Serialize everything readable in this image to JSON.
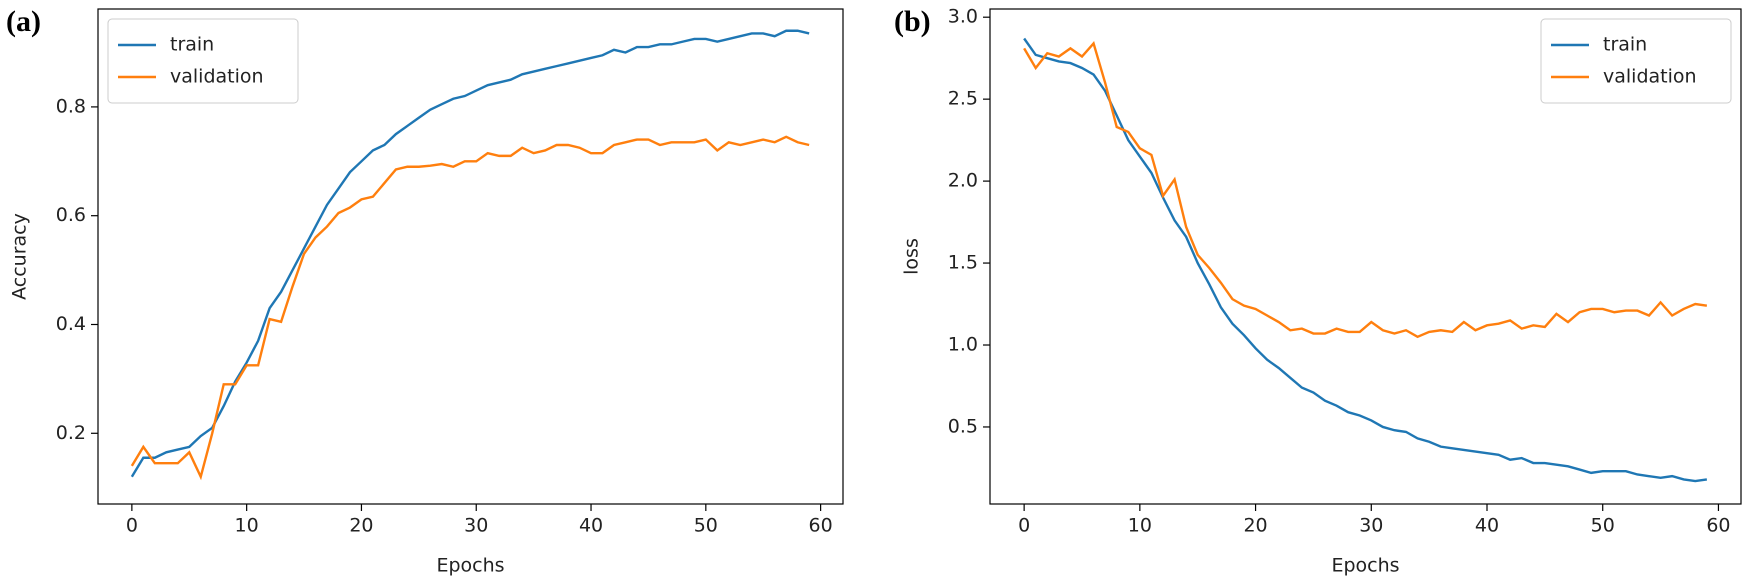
{
  "chart_data": [
    {
      "type": "line",
      "label": "(a)",
      "xlabel": "Epochs",
      "ylabel": "Accuracy",
      "x": [
        0,
        1,
        2,
        3,
        4,
        5,
        6,
        7,
        8,
        9,
        10,
        11,
        12,
        13,
        14,
        15,
        16,
        17,
        18,
        19,
        20,
        21,
        22,
        23,
        24,
        25,
        26,
        27,
        28,
        29,
        30,
        31,
        32,
        33,
        34,
        35,
        36,
        37,
        38,
        39,
        40,
        41,
        42,
        43,
        44,
        45,
        46,
        47,
        48,
        49,
        50,
        51,
        52,
        53,
        54,
        55,
        56,
        57,
        58,
        59
      ],
      "series": [
        {
          "name": "train",
          "color": "#1f77b4",
          "values": [
            0.12,
            0.155,
            0.155,
            0.165,
            0.17,
            0.175,
            0.195,
            0.21,
            0.25,
            0.295,
            0.33,
            0.37,
            0.43,
            0.46,
            0.5,
            0.54,
            0.58,
            0.62,
            0.65,
            0.68,
            0.7,
            0.72,
            0.73,
            0.75,
            0.765,
            0.78,
            0.795,
            0.805,
            0.815,
            0.82,
            0.83,
            0.84,
            0.845,
            0.85,
            0.86,
            0.865,
            0.87,
            0.875,
            0.88,
            0.885,
            0.89,
            0.895,
            0.905,
            0.9,
            0.91,
            0.91,
            0.915,
            0.915,
            0.92,
            0.925,
            0.925,
            0.92,
            0.925,
            0.93,
            0.935,
            0.935,
            0.93,
            0.94,
            0.94,
            0.935
          ]
        },
        {
          "name": "validation",
          "color": "#ff7f0e",
          "values": [
            0.14,
            0.175,
            0.145,
            0.145,
            0.145,
            0.165,
            0.12,
            0.2,
            0.29,
            0.29,
            0.325,
            0.325,
            0.41,
            0.405,
            0.47,
            0.53,
            0.56,
            0.58,
            0.605,
            0.615,
            0.63,
            0.635,
            0.66,
            0.685,
            0.69,
            0.69,
            0.692,
            0.695,
            0.69,
            0.7,
            0.7,
            0.715,
            0.71,
            0.71,
            0.725,
            0.715,
            0.72,
            0.73,
            0.73,
            0.725,
            0.715,
            0.715,
            0.73,
            0.735,
            0.74,
            0.74,
            0.73,
            0.735,
            0.735,
            0.735,
            0.74,
            0.72,
            0.735,
            0.73,
            0.735,
            0.74,
            0.735,
            0.745,
            0.735,
            0.73
          ]
        }
      ],
      "xlim": [
        -2.95,
        61.95
      ],
      "xticks": [
        0,
        10,
        20,
        30,
        40,
        50,
        60
      ],
      "ylim": [
        0.07,
        0.98
      ],
      "yticks": [
        0.2,
        0.4,
        0.6,
        0.8
      ],
      "legend": "upper left"
    },
    {
      "type": "line",
      "label": "(b)",
      "xlabel": "Epochs",
      "ylabel": "loss",
      "x": [
        0,
        1,
        2,
        3,
        4,
        5,
        6,
        7,
        8,
        9,
        10,
        11,
        12,
        13,
        14,
        15,
        16,
        17,
        18,
        19,
        20,
        21,
        22,
        23,
        24,
        25,
        26,
        27,
        28,
        29,
        30,
        31,
        32,
        33,
        34,
        35,
        36,
        37,
        38,
        39,
        40,
        41,
        42,
        43,
        44,
        45,
        46,
        47,
        48,
        49,
        50,
        51,
        52,
        53,
        54,
        55,
        56,
        57,
        58,
        59
      ],
      "series": [
        {
          "name": "train",
          "color": "#1f77b4",
          "values": [
            2.87,
            2.77,
            2.75,
            2.73,
            2.72,
            2.69,
            2.65,
            2.55,
            2.4,
            2.25,
            2.15,
            2.05,
            1.9,
            1.76,
            1.66,
            1.5,
            1.37,
            1.23,
            1.13,
            1.06,
            0.98,
            0.91,
            0.86,
            0.8,
            0.74,
            0.71,
            0.66,
            0.63,
            0.59,
            0.57,
            0.54,
            0.5,
            0.48,
            0.47,
            0.43,
            0.41,
            0.38,
            0.37,
            0.36,
            0.35,
            0.34,
            0.33,
            0.3,
            0.31,
            0.28,
            0.28,
            0.27,
            0.26,
            0.24,
            0.22,
            0.23,
            0.23,
            0.23,
            0.21,
            0.2,
            0.19,
            0.2,
            0.18,
            0.17,
            0.18
          ]
        },
        {
          "name": "validation",
          "color": "#ff7f0e",
          "values": [
            2.81,
            2.69,
            2.78,
            2.76,
            2.81,
            2.76,
            2.84,
            2.6,
            2.33,
            2.3,
            2.2,
            2.16,
            1.91,
            2.01,
            1.72,
            1.55,
            1.47,
            1.38,
            1.28,
            1.24,
            1.22,
            1.18,
            1.14,
            1.09,
            1.1,
            1.07,
            1.07,
            1.1,
            1.08,
            1.08,
            1.14,
            1.09,
            1.07,
            1.09,
            1.05,
            1.08,
            1.09,
            1.08,
            1.14,
            1.09,
            1.12,
            1.13,
            1.15,
            1.1,
            1.12,
            1.11,
            1.19,
            1.14,
            1.2,
            1.22,
            1.22,
            1.2,
            1.21,
            1.21,
            1.18,
            1.26,
            1.18,
            1.22,
            1.25,
            1.24
          ]
        }
      ],
      "xlim": [
        -2.95,
        61.95
      ],
      "xticks": [
        0,
        10,
        20,
        30,
        40,
        50,
        60
      ],
      "ylim": [
        0.03,
        3.05
      ],
      "yticks": [
        {
          "value": 0.5,
          "label": "0.5"
        },
        {
          "value": 1.0,
          "label": "1.0"
        },
        {
          "value": 1.5,
          "label": "1.5"
        },
        {
          "value": 2.0,
          "label": "2.0"
        },
        {
          "value": 2.5,
          "label": "2.5"
        },
        {
          "value": 3.0,
          "label": "3.0"
        }
      ],
      "legend": "upper right"
    }
  ]
}
